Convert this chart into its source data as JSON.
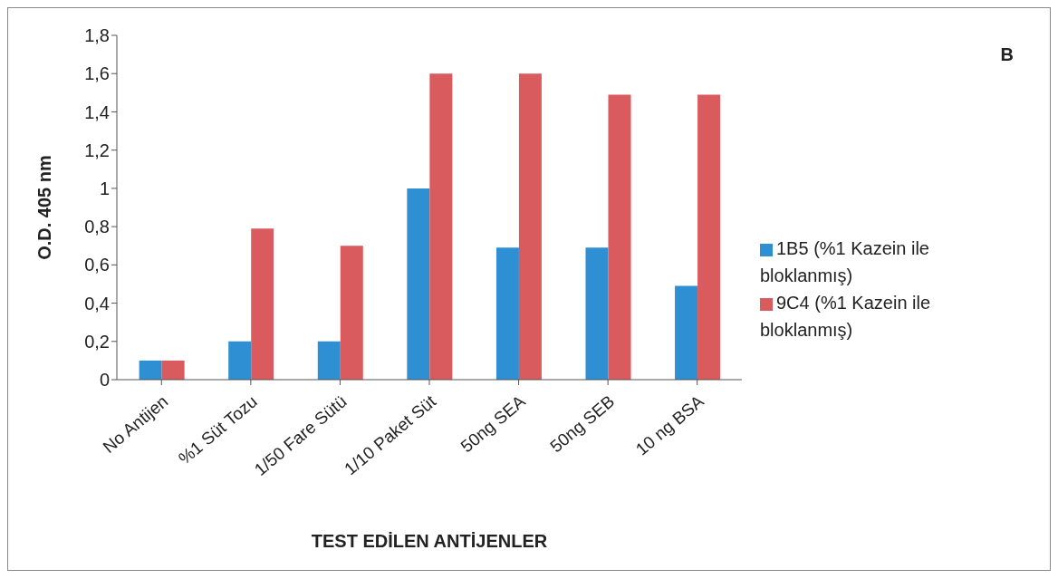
{
  "chart_data": {
    "type": "bar",
    "annotations": [
      "B"
    ],
    "xlabel": "TEST EDİLEN ANTİJENLER",
    "ylabel": "O.D. 405 nm",
    "categories": [
      "No Antijen",
      "%1 Süt Tozu",
      "1/50 Fare Sütü",
      "1/10 Paket Süt",
      "50ng SEA",
      "50ng SEB",
      "10 ng BSA"
    ],
    "series": [
      {
        "name": "1B5 (%1 Kazein ile bloklanmış)",
        "color": "#2e8fd2",
        "values": [
          0.1,
          0.2,
          0.2,
          1.0,
          0.69,
          0.69,
          0.49
        ]
      },
      {
        "name": "9C4 (%1 Kazein ile bloklanmış)",
        "color": "#d95b5e",
        "values": [
          0.1,
          0.79,
          0.7,
          1.6,
          1.6,
          1.49,
          1.49
        ]
      }
    ],
    "ylim": [
      0,
      1.8
    ],
    "yticks": [
      0,
      {
        "value": 0.2,
        "label": "0,2"
      },
      {
        "value": 0.4,
        "label": "0,4"
      },
      {
        "value": 0.6,
        "label": "0,6"
      },
      {
        "value": 0.8,
        "label": "0,8"
      },
      1,
      {
        "value": 1.2,
        "label": "1,2"
      },
      {
        "value": 1.4,
        "label": "1,4"
      },
      {
        "value": 1.6,
        "label": "1,6"
      },
      {
        "value": 1.8,
        "label": "1,8"
      }
    ],
    "grid": false,
    "legend": "right"
  }
}
